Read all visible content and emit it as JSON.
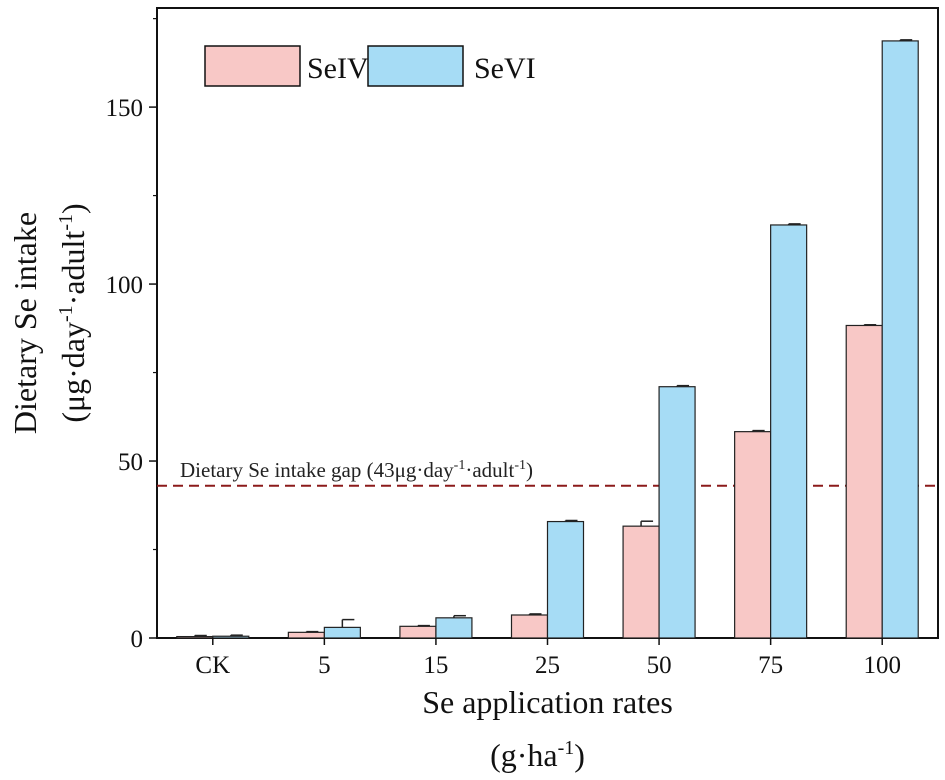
{
  "chart_data": {
    "type": "bar",
    "title": "",
    "categories": [
      "CK",
      "5",
      "15",
      "25",
      "50",
      "75",
      "100"
    ],
    "series": [
      {
        "name": "SeIV",
        "color": "#f8c8c6",
        "values": [
          0.4,
          1.6,
          3.3,
          6.5,
          31.6,
          58.3,
          88.3
        ],
        "errors": [
          0.3,
          0.2,
          0.2,
          0.3,
          1.4,
          0.3,
          0.2
        ]
      },
      {
        "name": "SeVI",
        "color": "#a6dcf5",
        "values": [
          0.5,
          3.0,
          5.7,
          32.9,
          71.0,
          116.7,
          168.7
        ],
        "errors": [
          0.3,
          2.2,
          0.6,
          0.3,
          0.3,
          0.3,
          0.3
        ]
      }
    ],
    "xlabel": "Se application rates",
    "xlabel_unit": {
      "base": "(g·ha",
      "sup": "-1",
      "end": ")"
    },
    "ylabel": "Dietary Se intake",
    "ylabel_unit": {
      "p1": "(μg·day",
      "s1": "-1",
      "p2": "·adult",
      "s2": "-1",
      "p3": ")"
    },
    "ylim": [
      0,
      178
    ],
    "yticks": [
      0,
      50,
      100,
      150
    ],
    "reference_line": {
      "value": 43,
      "color": "#8b1a1a",
      "label": {
        "p1": "Dietary Se intake gap (43μg·day",
        "s1": "-1",
        "p2": "·adult",
        "s2": "-1",
        "p3": ")"
      }
    },
    "legend_position": "top-left",
    "grid": false
  }
}
